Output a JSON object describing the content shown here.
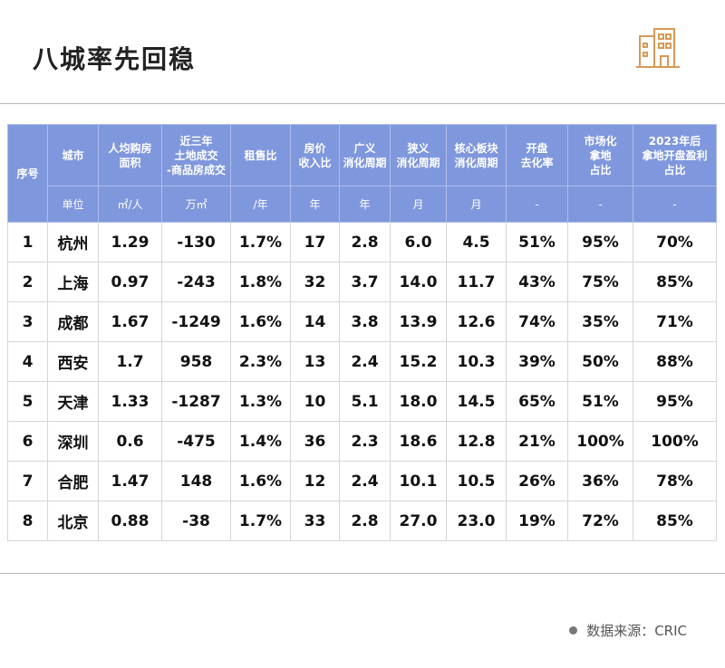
{
  "header": {
    "title": "八城率先回稳"
  },
  "table": {
    "index_header": "序号",
    "columns": [
      "城市",
      "人均购房\n面积",
      "近三年\n土地成交\n-商品房成交",
      "租售比",
      "房价\n收入比",
      "广义\n消化周期",
      "狭义\n消化周期",
      "核心板块\n消化周期",
      "开盘\n去化率",
      "市场化\n拿地\n占比",
      "2023年后\n拿地开盘盈利\n占比"
    ],
    "units": [
      "单位",
      "㎡/人",
      "万㎡",
      "/年",
      "年",
      "年",
      "月",
      "月",
      "-",
      "-",
      "-"
    ],
    "rows": [
      [
        "1",
        "杭州",
        "1.29",
        "-130",
        "1.7%",
        "17",
        "2.8",
        "6.0",
        "4.5",
        "51%",
        "95%",
        "70%"
      ],
      [
        "2",
        "上海",
        "0.97",
        "-243",
        "1.8%",
        "32",
        "3.7",
        "14.0",
        "11.7",
        "43%",
        "75%",
        "85%"
      ],
      [
        "3",
        "成都",
        "1.67",
        "-1249",
        "1.6%",
        "14",
        "3.8",
        "13.9",
        "12.6",
        "74%",
        "35%",
        "71%"
      ],
      [
        "4",
        "西安",
        "1.7",
        "958",
        "2.3%",
        "13",
        "2.4",
        "15.2",
        "10.3",
        "39%",
        "50%",
        "88%"
      ],
      [
        "5",
        "天津",
        "1.33",
        "-1287",
        "1.3%",
        "10",
        "5.1",
        "18.0",
        "14.5",
        "65%",
        "51%",
        "95%"
      ],
      [
        "6",
        "深圳",
        "0.6",
        "-475",
        "1.4%",
        "36",
        "2.3",
        "18.6",
        "12.8",
        "21%",
        "100%",
        "100%"
      ],
      [
        "7",
        "合肥",
        "1.47",
        "148",
        "1.6%",
        "12",
        "2.4",
        "10.1",
        "10.5",
        "26%",
        "36%",
        "78%"
      ],
      [
        "8",
        "北京",
        "0.88",
        "-38",
        "1.7%",
        "33",
        "2.8",
        "27.0",
        "23.0",
        "19%",
        "72%",
        "85%"
      ]
    ]
  },
  "footer": {
    "source": "数据来源：CRIC"
  }
}
